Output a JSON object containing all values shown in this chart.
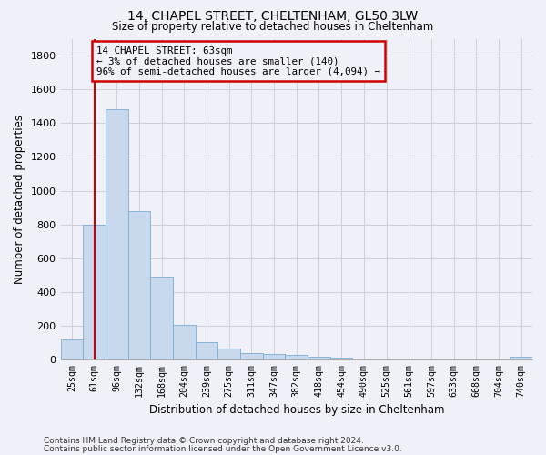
{
  "title1": "14, CHAPEL STREET, CHELTENHAM, GL50 3LW",
  "title2": "Size of property relative to detached houses in Cheltenham",
  "xlabel": "Distribution of detached houses by size in Cheltenham",
  "ylabel": "Number of detached properties",
  "footnote1": "Contains HM Land Registry data © Crown copyright and database right 2024.",
  "footnote2": "Contains public sector information licensed under the Open Government Licence v3.0.",
  "annotation_line1": "14 CHAPEL STREET: 63sqm",
  "annotation_line2": "← 3% of detached houses are smaller (140)",
  "annotation_line3": "96% of semi-detached houses are larger (4,094) →",
  "bar_color": "#c8d8ed",
  "bar_edge_color": "#7aadd4",
  "redline_x": 1.0,
  "redline_color": "#cc0000",
  "annotation_box_color": "#cc0000",
  "ylim": [
    0,
    1900
  ],
  "yticks": [
    0,
    200,
    400,
    600,
    800,
    1000,
    1200,
    1400,
    1600,
    1800
  ],
  "categories": [
    "25sqm",
    "61sqm",
    "96sqm",
    "132sqm",
    "168sqm",
    "204sqm",
    "239sqm",
    "275sqm",
    "311sqm",
    "347sqm",
    "382sqm",
    "418sqm",
    "454sqm",
    "490sqm",
    "525sqm",
    "561sqm",
    "597sqm",
    "633sqm",
    "668sqm",
    "704sqm",
    "740sqm"
  ],
  "values": [
    120,
    800,
    1480,
    880,
    490,
    205,
    105,
    65,
    38,
    35,
    28,
    20,
    15,
    0,
    0,
    0,
    0,
    0,
    0,
    0,
    18
  ],
  "grid_color": "#d0d0d8",
  "bg_color": "#f0f0f8"
}
